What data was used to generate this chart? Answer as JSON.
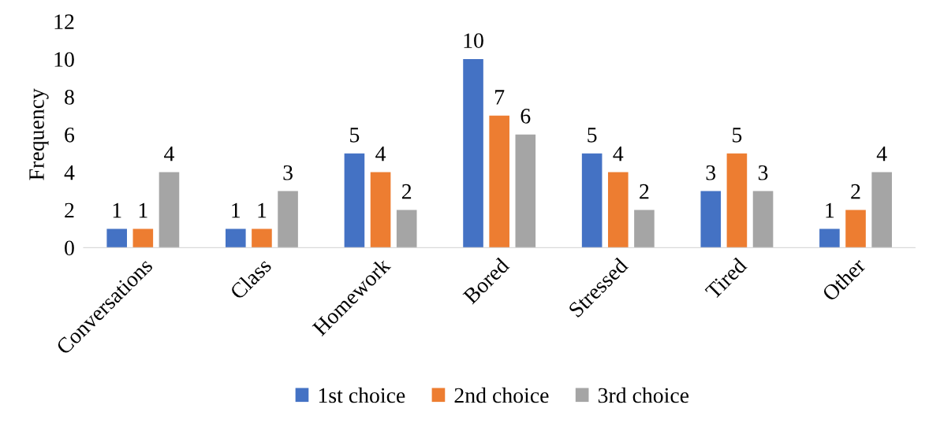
{
  "chart_data": {
    "type": "bar",
    "ylabel": "Frequency",
    "categories": [
      "Conversations",
      "Class",
      "Homework",
      "Bored",
      "Stressed",
      "Tired",
      "Other"
    ],
    "series": [
      {
        "name": "1st choice",
        "color": "#4472c4",
        "values": [
          1,
          1,
          5,
          10,
          5,
          3,
          1
        ]
      },
      {
        "name": "2nd choice",
        "color": "#ed7d31",
        "values": [
          1,
          1,
          4,
          7,
          4,
          5,
          2
        ]
      },
      {
        "name": "3rd choice",
        "color": "#a5a5a5",
        "values": [
          4,
          3,
          2,
          6,
          2,
          3,
          4
        ]
      }
    ],
    "ylim": [
      0,
      12
    ],
    "yticks": [
      0,
      2,
      4,
      6,
      8,
      10,
      12
    ],
    "grid": false,
    "legend": "bottom",
    "data_labels": true
  }
}
